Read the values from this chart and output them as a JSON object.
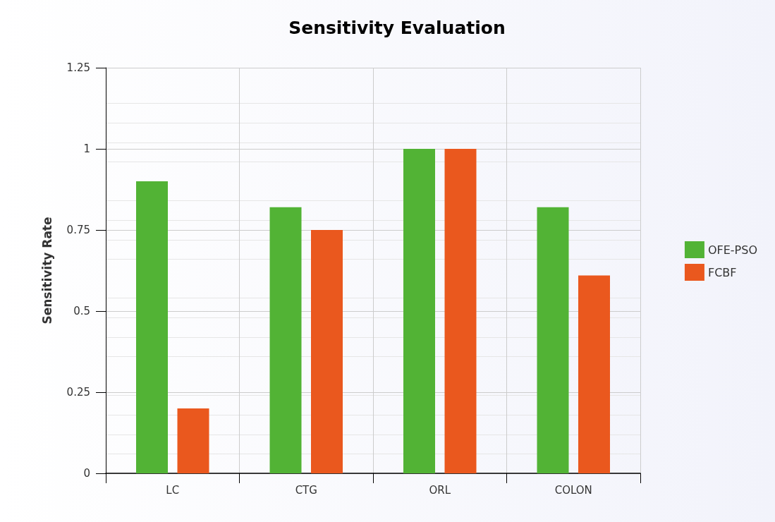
{
  "chart_data": {
    "type": "bar",
    "title": "Sensitivity Evaluation",
    "ylabel": "Sensitivity Rate",
    "categories": [
      "LC",
      "CTG",
      "ORL",
      "COLON"
    ],
    "series": [
      {
        "name": "OFE-PSO",
        "color": "#52b335",
        "values": [
          0.9,
          0.82,
          1,
          0.82
        ]
      },
      {
        "name": "FCBF",
        "color": "#ea581e",
        "values": [
          0.2,
          0.75,
          1,
          0.61
        ]
      }
    ],
    "ylim": [
      0,
      1.25
    ],
    "yticks": [
      0,
      0.25,
      0.5,
      0.75,
      1,
      1.25
    ],
    "grid": true,
    "legend": "right"
  }
}
